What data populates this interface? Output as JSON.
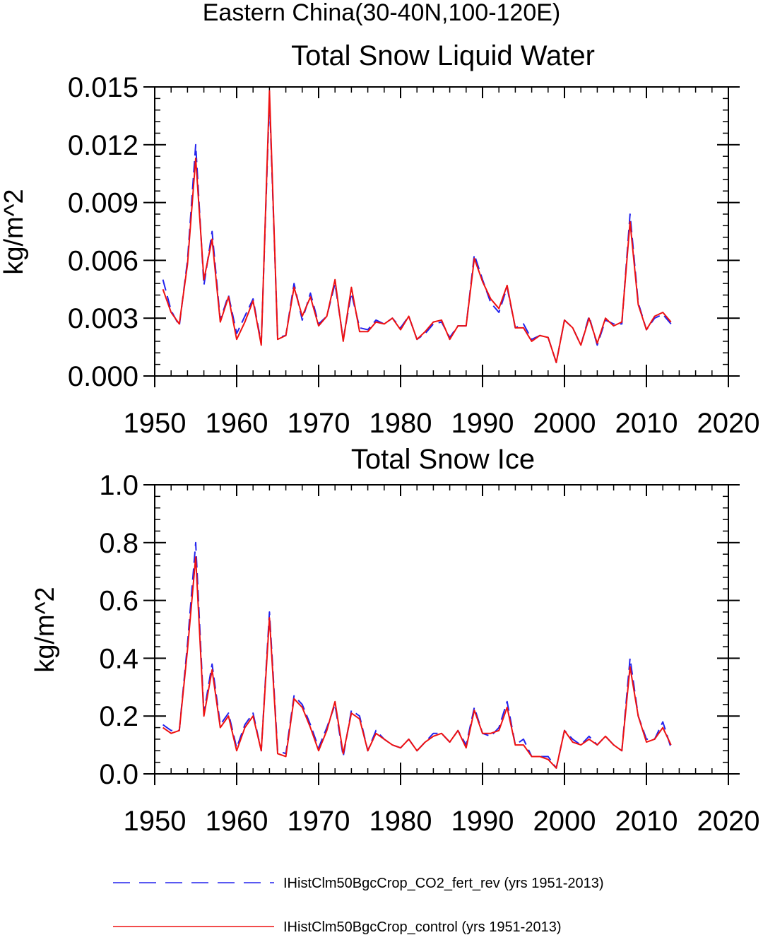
{
  "figure_title": "Eastern China(30-40N,100-120E)",
  "colors": {
    "co2_fert_rev": "#2222ee",
    "control": "#ee1111",
    "frame": "#000000"
  },
  "legend": [
    {
      "label": "IHistClm50BgcCrop_CO2_fert_rev (yrs 1951-2013)",
      "style": "dashed",
      "color": "#2222ee"
    },
    {
      "label": "IHistClm50BgcCrop_control (yrs 1951-2013)",
      "style": "solid",
      "color": "#ee1111"
    }
  ],
  "chart_data": [
    {
      "type": "line",
      "title": "Total Snow Liquid Water",
      "xlabel": "",
      "ylabel": "kg/m^2",
      "xlim": [
        1950,
        2020
      ],
      "ylim": [
        0,
        0.015
      ],
      "xticks": [
        "1950",
        "1960",
        "1970",
        "1980",
        "1990",
        "2000",
        "2010",
        "2020"
      ],
      "yticks": [
        "0.000",
        "0.003",
        "0.006",
        "0.009",
        "0.012",
        "0.015"
      ],
      "x": [
        1951,
        1952,
        1953,
        1954,
        1955,
        1956,
        1957,
        1958,
        1959,
        1960,
        1961,
        1962,
        1963,
        1964,
        1965,
        1966,
        1967,
        1968,
        1969,
        1970,
        1971,
        1972,
        1973,
        1974,
        1975,
        1976,
        1977,
        1978,
        1979,
        1980,
        1981,
        1982,
        1983,
        1984,
        1985,
        1986,
        1987,
        1988,
        1989,
        1990,
        1991,
        1992,
        1993,
        1994,
        1995,
        1996,
        1997,
        1998,
        1999,
        2000,
        2001,
        2002,
        2003,
        2004,
        2005,
        2006,
        2007,
        2008,
        2009,
        2010,
        2011,
        2012,
        2013
      ],
      "series": [
        {
          "name": "IHistClm50BgcCrop_CO2_fert_rev (yrs 1951-2013)",
          "style": "dashed",
          "color": "#2222ee",
          "values": [
            0.005,
            0.0034,
            0.0026,
            0.006,
            0.012,
            0.0047,
            0.0075,
            0.0029,
            0.0042,
            0.0022,
            0.0031,
            0.004,
            0.0017,
            0.0144,
            0.002,
            0.0021,
            0.0048,
            0.0029,
            0.0043,
            0.0027,
            0.0031,
            0.0048,
            0.0019,
            0.0043,
            0.0025,
            0.0024,
            0.0029,
            0.0027,
            0.003,
            0.0025,
            0.0031,
            0.0019,
            0.0022,
            0.0027,
            0.0028,
            0.002,
            0.0026,
            0.0026,
            0.0063,
            0.005,
            0.0038,
            0.0033,
            0.0046,
            0.0025,
            0.0027,
            0.0019,
            0.0021,
            0.002,
            0.0007,
            0.0029,
            0.0025,
            0.0016,
            0.0031,
            0.0016,
            0.0029,
            0.0027,
            0.0027,
            0.0084,
            0.0038,
            0.0024,
            0.003,
            0.0032,
            0.0027
          ]
        },
        {
          "name": "IHistClm50BgcCrop_control (yrs 1951-2013)",
          "style": "solid",
          "color": "#ee1111",
          "values": [
            0.0045,
            0.0033,
            0.0027,
            0.0058,
            0.0113,
            0.005,
            0.0071,
            0.0028,
            0.0041,
            0.0019,
            0.0028,
            0.0039,
            0.0016,
            0.0148,
            0.0019,
            0.0021,
            0.0046,
            0.0031,
            0.0041,
            0.0026,
            0.0031,
            0.005,
            0.0018,
            0.0046,
            0.0023,
            0.0023,
            0.0028,
            0.0027,
            0.003,
            0.0024,
            0.0031,
            0.0019,
            0.0023,
            0.0028,
            0.0029,
            0.0019,
            0.0026,
            0.0026,
            0.0061,
            0.0049,
            0.004,
            0.0035,
            0.0047,
            0.0025,
            0.0025,
            0.0018,
            0.0021,
            0.002,
            0.0007,
            0.0029,
            0.0025,
            0.0016,
            0.003,
            0.0017,
            0.003,
            0.0026,
            0.0028,
            0.008,
            0.0037,
            0.0024,
            0.0031,
            0.0033,
            0.0028
          ]
        }
      ]
    },
    {
      "type": "line",
      "title": "Total Snow Ice",
      "xlabel": "",
      "ylabel": "kg/m^2",
      "xlim": [
        1950,
        2020
      ],
      "ylim": [
        0,
        1.0
      ],
      "xticks": [
        "1950",
        "1960",
        "1970",
        "1980",
        "1990",
        "2000",
        "2010",
        "2020"
      ],
      "yticks": [
        "0.0",
        "0.2",
        "0.4",
        "0.6",
        "0.8",
        "1.0"
      ],
      "x": [
        1951,
        1952,
        1953,
        1954,
        1955,
        1956,
        1957,
        1958,
        1959,
        1960,
        1961,
        1962,
        1963,
        1964,
        1965,
        1966,
        1967,
        1968,
        1969,
        1970,
        1971,
        1972,
        1973,
        1974,
        1975,
        1976,
        1977,
        1978,
        1979,
        1980,
        1981,
        1982,
        1983,
        1984,
        1985,
        1986,
        1987,
        1988,
        1989,
        1990,
        1991,
        1992,
        1993,
        1994,
        1995,
        1996,
        1997,
        1998,
        1999,
        2000,
        2001,
        2002,
        2003,
        2004,
        2005,
        2006,
        2007,
        2008,
        2009,
        2010,
        2011,
        2012,
        2013
      ],
      "series": [
        {
          "name": "IHistClm50BgcCrop_CO2_fert_rev (yrs 1951-2013)",
          "style": "dashed",
          "color": "#2222ee",
          "values": [
            0.17,
            0.15,
            0.15,
            0.45,
            0.8,
            0.21,
            0.38,
            0.17,
            0.21,
            0.09,
            0.17,
            0.21,
            0.08,
            0.56,
            0.08,
            0.07,
            0.27,
            0.24,
            0.17,
            0.09,
            0.16,
            0.24,
            0.06,
            0.22,
            0.2,
            0.08,
            0.15,
            0.12,
            0.1,
            0.09,
            0.12,
            0.08,
            0.11,
            0.14,
            0.14,
            0.11,
            0.15,
            0.1,
            0.23,
            0.14,
            0.13,
            0.16,
            0.25,
            0.1,
            0.12,
            0.06,
            0.06,
            0.06,
            0.02,
            0.15,
            0.12,
            0.1,
            0.13,
            0.1,
            0.13,
            0.1,
            0.08,
            0.4,
            0.2,
            0.12,
            0.12,
            0.18,
            0.09
          ]
        },
        {
          "name": "IHistClm50BgcCrop_control (yrs 1951-2013)",
          "style": "solid",
          "color": "#ee1111",
          "values": [
            0.16,
            0.14,
            0.15,
            0.43,
            0.75,
            0.2,
            0.36,
            0.16,
            0.2,
            0.08,
            0.16,
            0.2,
            0.08,
            0.54,
            0.07,
            0.06,
            0.26,
            0.23,
            0.16,
            0.08,
            0.15,
            0.25,
            0.07,
            0.21,
            0.19,
            0.08,
            0.14,
            0.12,
            0.1,
            0.09,
            0.12,
            0.08,
            0.11,
            0.13,
            0.14,
            0.11,
            0.15,
            0.09,
            0.22,
            0.14,
            0.14,
            0.15,
            0.23,
            0.1,
            0.1,
            0.06,
            0.06,
            0.05,
            0.02,
            0.15,
            0.11,
            0.1,
            0.12,
            0.1,
            0.13,
            0.1,
            0.08,
            0.37,
            0.2,
            0.11,
            0.12,
            0.16,
            0.1
          ]
        }
      ]
    }
  ]
}
